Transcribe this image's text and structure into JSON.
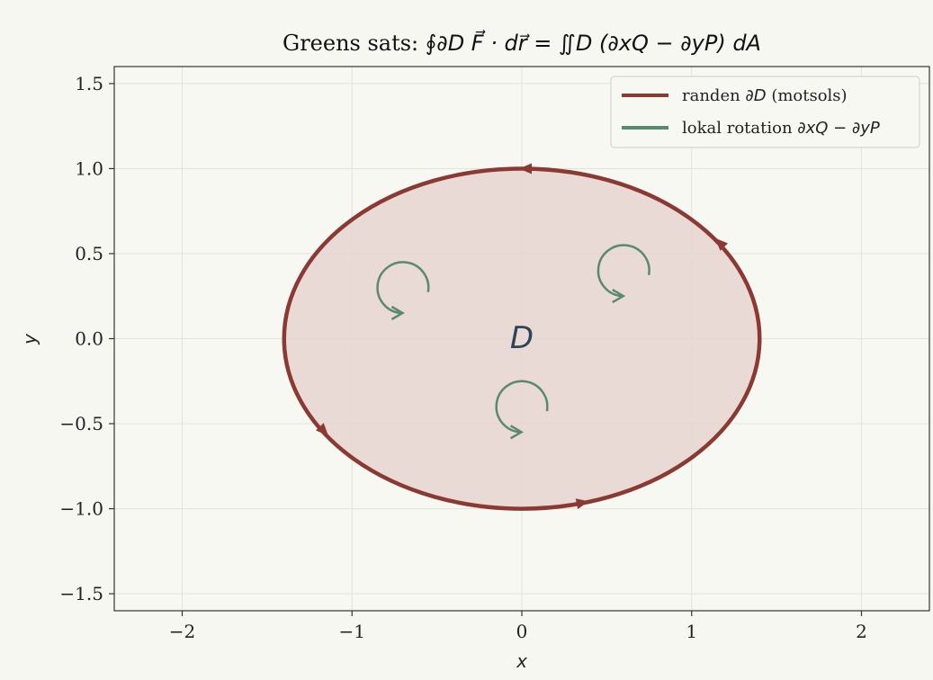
{
  "chart_data": {
    "type": "line",
    "title": {
      "prefix": "Greens sats: ",
      "formula": "∮∂D F⃗ · dr⃗ = ∬D (∂xQ − ∂yP) dA"
    },
    "xlabel": "x",
    "ylabel": "y",
    "xlim": [
      -2.4,
      2.4
    ],
    "ylim": [
      -1.6,
      1.6
    ],
    "xticks": [
      -2,
      -1,
      0,
      1,
      2
    ],
    "yticks": [
      -1.5,
      -1.0,
      -0.5,
      0.0,
      0.5,
      1.0,
      1.5
    ],
    "xtick_labels": [
      "−2",
      "−1",
      "0",
      "1",
      "2"
    ],
    "ytick_labels": [
      "−1.5",
      "−1.0",
      "−0.5",
      "0.0",
      "0.5",
      "1.0",
      "1.5"
    ],
    "grid": true,
    "legend_position": "top-right",
    "region_label": "D",
    "series": [
      {
        "name": "randen ∂D (motsols)",
        "legend_text": "randen ",
        "legend_math": "∂D",
        "legend_suffix": " (motsols)",
        "shape": "ellipse",
        "center": [
          0,
          0
        ],
        "semi_axes": [
          1.4,
          1.0
        ],
        "orientation": "counterclockwise",
        "arrow_positions": [
          {
            "x": 0.0,
            "y": 1.0
          },
          {
            "x": 1.15,
            "y": 0.58
          },
          {
            "x": -1.15,
            "y": -0.56
          },
          {
            "x": 0.38,
            "y": -0.96
          }
        ],
        "color": "#8b3a33",
        "fill": "#e6d5d0"
      },
      {
        "name": "lokal rotation ∂xQ − ∂yP",
        "legend_text": "lokal rotation ",
        "legend_math": "∂xQ − ∂yP",
        "shape": "circular-arrows",
        "radius": 0.15,
        "centers": [
          {
            "x": -0.7,
            "y": 0.3
          },
          {
            "x": 0.6,
            "y": 0.4
          },
          {
            "x": 0.0,
            "y": -0.4
          }
        ],
        "color": "#5a8a6e"
      }
    ],
    "colors": {
      "background": "#f7f7f1",
      "axes_background": "#f8f8f2",
      "grid": "#e3e3dc",
      "spine": "#333333",
      "region_label": "#2f4358"
    }
  }
}
